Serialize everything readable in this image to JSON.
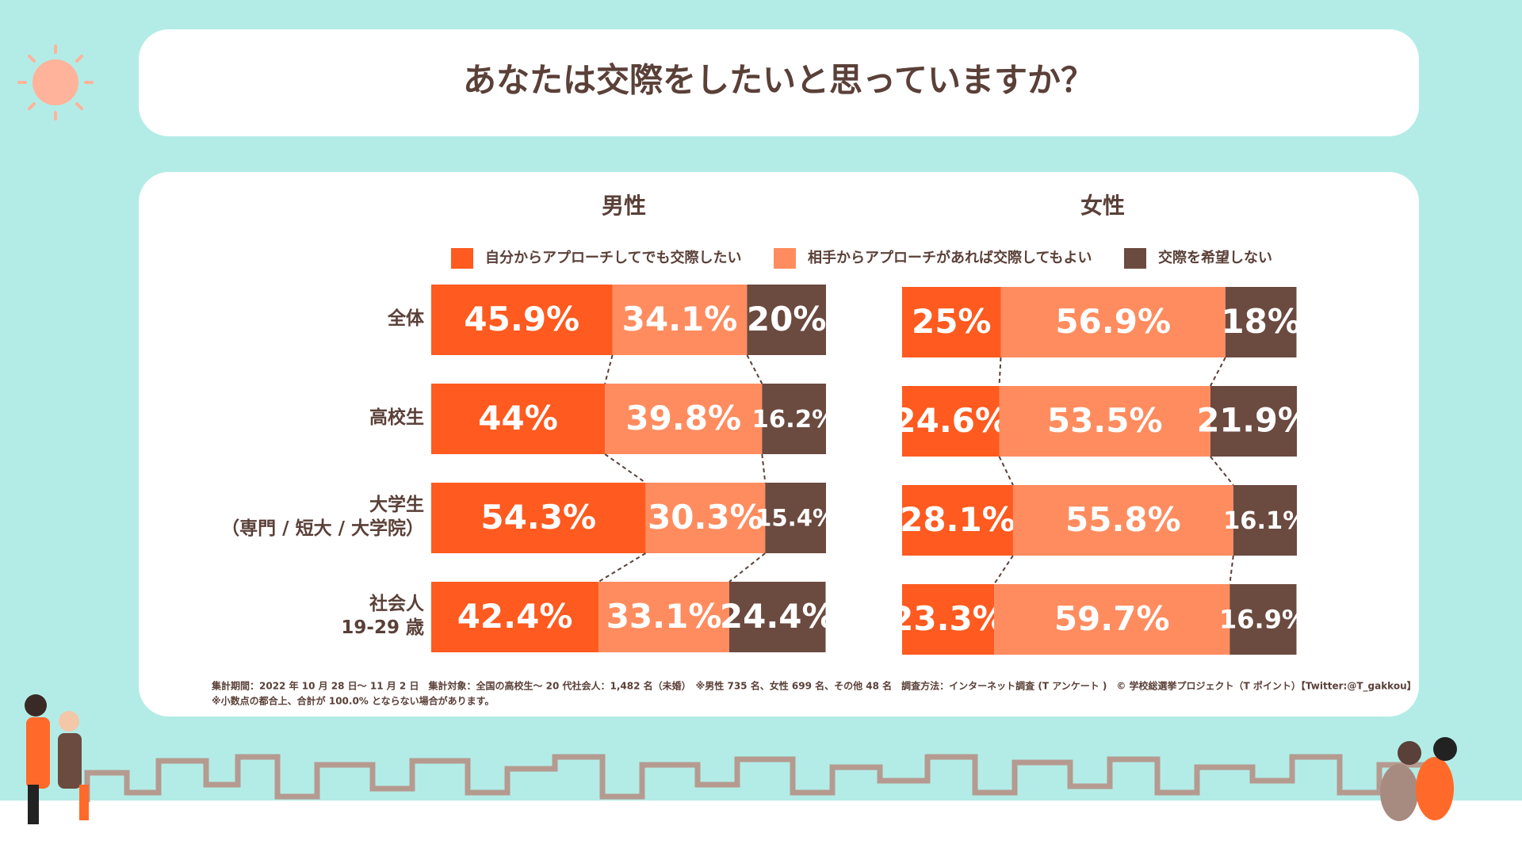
{
  "title": "あなたは交際をしたいと思っていますか？",
  "chart_data": [
    {
      "type": "bar",
      "orientation": "horizontal",
      "stacked": true,
      "title": "男性",
      "categories": [
        "全体",
        "高校生",
        "大学生\n（専門 / 短大 / 大学院）",
        "社会人\n19-29 歳"
      ],
      "xlim": [
        0,
        100
      ],
      "series": [
        {
          "name": "自分からアプローチしてでも交際したい",
          "color": "#ff5a1f",
          "values": [
            45.9,
            44,
            54.3,
            42.4
          ],
          "value_labels": [
            "45.9%",
            "44%",
            "54.3%",
            "42.4%"
          ]
        },
        {
          "name": "相手からアプローチがあれば交際してもよい",
          "color": "#ff8c5f",
          "values": [
            34.1,
            39.8,
            30.3,
            33.1
          ],
          "value_labels": [
            "34.1%",
            "39.8%",
            "30.3%",
            "33.1%"
          ]
        },
        {
          "name": "交際を希望しない",
          "color": "#6b4a40",
          "values": [
            20,
            16.2,
            15.4,
            24.4
          ],
          "value_labels": [
            "20%",
            "16.2%",
            "15.4%",
            "24.4%"
          ]
        }
      ]
    },
    {
      "type": "bar",
      "orientation": "horizontal",
      "stacked": true,
      "title": "女性",
      "xlim": [
        0,
        100
      ],
      "series": [
        {
          "color": "#ff5a1f",
          "values": [
            25,
            24.6,
            28.1,
            23.3
          ],
          "value_labels": [
            "25%",
            "24.6%",
            "28.1%",
            "23.3%"
          ]
        },
        {
          "color": "#ff8c5f",
          "values": [
            56.9,
            53.5,
            55.8,
            59.7
          ],
          "value_labels": [
            "56.9%",
            "53.5%",
            "55.8%",
            "59.7%"
          ]
        },
        {
          "color": "#6b4a40",
          "values": [
            18,
            21.9,
            16.1,
            16.9
          ],
          "value_labels": [
            "18%",
            "21.9%",
            "16.1%",
            "16.9%"
          ]
        }
      ]
    }
  ],
  "notes": [
    "集計期間：2022 年 10 月 28 日～ 11 月 2 日　集計対象：全国の高校生～ 20 代社会人：1,482 名（未婚）　※男性 735 名、女性 699 名、その他 48 名　調査方法：インターネット調査 (T アンケート )　© 学校総選挙プロジェクト（T ポイント）【Twitter:@T_gakkou】",
    "※小数点の都合上、合計が 100.0% とならない場合があります。"
  ]
}
